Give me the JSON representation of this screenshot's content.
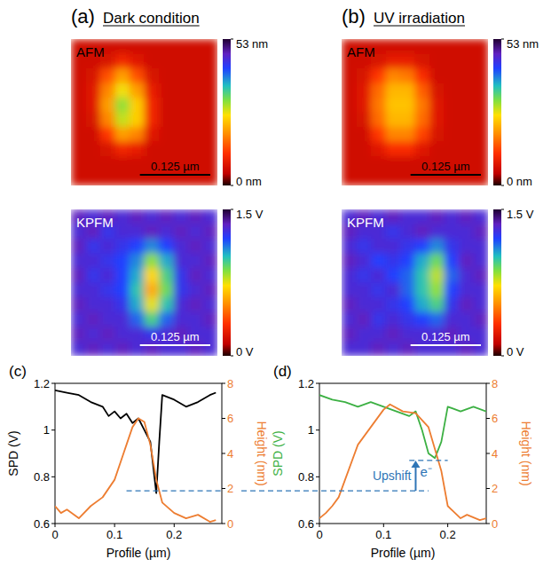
{
  "headers": [
    {
      "letter": "(a)",
      "title": "Dark condition"
    },
    {
      "letter": "(b)",
      "title": "UV irradiation"
    }
  ],
  "annotation": {
    "label": "Upshift",
    "carrier": "e⁻",
    "from": 0.74,
    "to": 0.87,
    "start_x": 0.12,
    "end_x": 0.17,
    "x": 0.15,
    "upper_span": [
      0.14,
      0.2
    ]
  },
  "chart_data": [
    {
      "type": "heatmap",
      "title": "AFM",
      "tick_labels": false,
      "zlim": [
        0,
        53
      ],
      "zticks": [
        {
          "value": 0,
          "label": "0 nm"
        },
        {
          "value": 53,
          "label": "53 nm"
        }
      ],
      "scale_bar": {
        "value": 0.125,
        "label": "0.125 µm"
      },
      "width_um": 0.26,
      "cells": [
        [
          6,
          6,
          6,
          6,
          6,
          6,
          6,
          6,
          6,
          6
        ],
        [
          6,
          6,
          7,
          10,
          8,
          6,
          6,
          6,
          6,
          6
        ],
        [
          6,
          7,
          14,
          20,
          14,
          7,
          6,
          6,
          6,
          6
        ],
        [
          6,
          8,
          18,
          26,
          20,
          9,
          6,
          6,
          6,
          6
        ],
        [
          6,
          8,
          20,
          30,
          24,
          10,
          6,
          6,
          6,
          6
        ],
        [
          6,
          7,
          18,
          28,
          24,
          10,
          6,
          6,
          6,
          6
        ],
        [
          6,
          6,
          12,
          20,
          18,
          8,
          6,
          6,
          6,
          6
        ],
        [
          6,
          6,
          7,
          10,
          9,
          6,
          6,
          6,
          6,
          6
        ],
        [
          6,
          6,
          6,
          6,
          6,
          6,
          6,
          6,
          6,
          6
        ],
        [
          6,
          6,
          6,
          6,
          6,
          6,
          6,
          6,
          6,
          6
        ]
      ]
    },
    {
      "type": "heatmap",
      "title": "KPFM",
      "tick_labels": false,
      "zlim": [
        0,
        1.5
      ],
      "zticks": [
        {
          "value": 0,
          "label": "0 V"
        },
        {
          "value": 1.5,
          "label": "1.5 V"
        }
      ],
      "scale_bar": {
        "value": 0.125,
        "label": "0.125 µm"
      },
      "width_um": 0.26,
      "cells": [
        [
          1.35,
          1.3,
          1.35,
          1.3,
          1.35,
          1.3,
          1.35,
          1.3,
          1.35,
          1.3
        ],
        [
          1.3,
          1.35,
          1.25,
          1.3,
          1.3,
          1.35,
          1.3,
          1.35,
          1.3,
          1.35
        ],
        [
          1.35,
          1.25,
          1.3,
          1.25,
          1.2,
          1.1,
          1.2,
          1.3,
          1.35,
          1.3
        ],
        [
          1.3,
          1.3,
          1.25,
          1.2,
          1.1,
          0.85,
          1.05,
          1.3,
          1.3,
          1.35
        ],
        [
          1.35,
          1.25,
          1.3,
          1.2,
          1.05,
          0.7,
          0.95,
          1.25,
          1.35,
          1.3
        ],
        [
          1.3,
          1.3,
          1.25,
          1.2,
          1.0,
          0.6,
          0.9,
          1.25,
          1.3,
          1.35
        ],
        [
          1.35,
          1.3,
          1.3,
          1.25,
          1.05,
          0.75,
          1.0,
          1.3,
          1.35,
          1.3
        ],
        [
          1.3,
          1.35,
          1.3,
          1.3,
          1.15,
          0.95,
          1.15,
          1.3,
          1.3,
          1.35
        ],
        [
          1.35,
          1.3,
          1.35,
          1.3,
          1.3,
          1.25,
          1.3,
          1.35,
          1.3,
          1.3
        ],
        [
          1.3,
          1.35,
          1.3,
          1.35,
          1.3,
          1.35,
          1.3,
          1.3,
          1.35,
          1.3
        ]
      ]
    },
    {
      "type": "heatmap",
      "title": "AFM",
      "tick_labels": false,
      "zlim": [
        0,
        53
      ],
      "zticks": [
        {
          "value": 0,
          "label": "0 nm"
        },
        {
          "value": 53,
          "label": "53 nm"
        }
      ],
      "scale_bar": {
        "value": 0.125,
        "label": "0.125 µm"
      },
      "width_um": 0.26,
      "cells": [
        [
          6,
          6,
          6,
          6,
          6,
          6,
          6,
          6,
          6,
          6
        ],
        [
          6,
          6,
          7,
          9,
          9,
          7,
          6,
          6,
          6,
          6
        ],
        [
          6,
          7,
          12,
          18,
          17,
          11,
          6,
          6,
          6,
          6
        ],
        [
          6,
          8,
          16,
          22,
          22,
          15,
          7,
          6,
          6,
          6
        ],
        [
          6,
          8,
          17,
          23,
          23,
          17,
          8,
          6,
          6,
          6
        ],
        [
          6,
          7,
          16,
          22,
          22,
          16,
          8,
          6,
          6,
          6
        ],
        [
          6,
          6,
          12,
          18,
          18,
          13,
          7,
          6,
          6,
          6
        ],
        [
          6,
          6,
          8,
          11,
          11,
          8,
          6,
          6,
          6,
          6
        ],
        [
          6,
          6,
          6,
          6,
          6,
          6,
          6,
          6,
          6,
          6
        ],
        [
          6,
          6,
          6,
          6,
          6,
          6,
          6,
          6,
          6,
          6
        ]
      ]
    },
    {
      "type": "heatmap",
      "title": "KPFM",
      "tick_labels": false,
      "zlim": [
        0,
        1.5
      ],
      "zticks": [
        {
          "value": 0,
          "label": "0 V"
        },
        {
          "value": 1.5,
          "label": "1.5 V"
        }
      ],
      "scale_bar": {
        "value": 0.125,
        "label": "0.125 µm"
      },
      "width_um": 0.26,
      "cells": [
        [
          1.3,
          1.35,
          1.3,
          1.35,
          1.3,
          1.3,
          1.35,
          1.3,
          1.35,
          1.3
        ],
        [
          1.35,
          1.3,
          1.3,
          1.25,
          1.3,
          1.35,
          1.3,
          1.3,
          1.3,
          1.35
        ],
        [
          1.3,
          1.25,
          1.3,
          1.3,
          1.25,
          1.2,
          1.1,
          1.25,
          1.3,
          1.3
        ],
        [
          1.35,
          1.3,
          1.2,
          1.25,
          1.2,
          1.05,
          0.9,
          1.2,
          1.35,
          1.3
        ],
        [
          1.3,
          1.25,
          1.3,
          1.2,
          1.15,
          1.0,
          0.8,
          1.15,
          1.3,
          1.35
        ],
        [
          1.3,
          1.3,
          1.25,
          1.3,
          1.15,
          1.0,
          0.85,
          1.2,
          1.3,
          1.3
        ],
        [
          1.35,
          1.3,
          1.3,
          1.25,
          1.2,
          1.05,
          0.95,
          1.25,
          1.35,
          1.3
        ],
        [
          1.3,
          1.35,
          1.25,
          1.3,
          1.25,
          1.2,
          1.15,
          1.3,
          1.3,
          1.35
        ],
        [
          1.35,
          1.3,
          1.3,
          1.35,
          1.3,
          1.3,
          1.3,
          1.35,
          1.3,
          1.3
        ],
        [
          1.3,
          1.3,
          1.35,
          1.3,
          1.35,
          1.3,
          1.3,
          1.3,
          1.35,
          1.3
        ]
      ]
    },
    {
      "type": "line",
      "panel": "(c)",
      "grid": false,
      "x_label": "Profile (µm)",
      "y_label": "SPD (V)",
      "y2_label": "Height (nm)",
      "xlim": [
        0,
        0.28
      ],
      "xticks": [
        0,
        0.1,
        0.2
      ],
      "ylim": [
        0.6,
        1.2
      ],
      "yticks": [
        0.6,
        0.8,
        1,
        1.2
      ],
      "y2lim": [
        0,
        8
      ],
      "y2ticks": [
        0,
        2,
        4,
        6,
        8
      ],
      "series": [
        {
          "color": "#000000",
          "x": [
            0,
            0.02,
            0.04,
            0.06,
            0.08,
            0.09,
            0.1,
            0.11,
            0.12,
            0.13,
            0.14,
            0.15,
            0.16,
            0.17,
            0.175,
            0.18,
            0.2,
            0.22,
            0.24,
            0.26,
            0.27
          ],
          "values": [
            1.17,
            1.16,
            1.15,
            1.12,
            1.1,
            1.06,
            1.08,
            1.05,
            1.07,
            1.03,
            1.05,
            1.0,
            0.95,
            0.73,
            0.95,
            1.15,
            1.13,
            1.1,
            1.12,
            1.15,
            1.16
          ]
        },
        {
          "color": "#ed7d31",
          "axis": "y2",
          "x": [
            0,
            0.01,
            0.02,
            0.04,
            0.06,
            0.08,
            0.1,
            0.12,
            0.13,
            0.14,
            0.15,
            0.16,
            0.17,
            0.18,
            0.2,
            0.22,
            0.24,
            0.26,
            0.27
          ],
          "values": [
            1,
            0.6,
            0.8,
            0.3,
            1.0,
            1.5,
            2.5,
            4.5,
            5.5,
            6,
            5.8,
            4.5,
            2.5,
            1.2,
            0.6,
            0.3,
            0.5,
            0.1,
            0.2
          ]
        }
      ]
    },
    {
      "type": "line",
      "panel": "(d)",
      "grid": false,
      "x_label": "Profile (µm)",
      "y_label": "SPD (V)",
      "y2_label": "Height (nm)",
      "xlim": [
        0,
        0.26
      ],
      "xticks": [
        0,
        0.1,
        0.2
      ],
      "ylim": [
        0.6,
        1.2
      ],
      "yticks": [
        0.6,
        0.8,
        1,
        1.2
      ],
      "y2lim": [
        0,
        8
      ],
      "y2ticks": [
        0,
        2,
        4,
        6,
        8
      ],
      "series": [
        {
          "color": "#3cb043",
          "x": [
            0,
            0.02,
            0.04,
            0.06,
            0.08,
            0.1,
            0.12,
            0.14,
            0.15,
            0.16,
            0.17,
            0.18,
            0.19,
            0.2,
            0.22,
            0.24,
            0.26
          ],
          "values": [
            1.15,
            1.13,
            1.12,
            1.1,
            1.12,
            1.1,
            1.08,
            1.06,
            1.08,
            1.0,
            0.9,
            0.88,
            0.95,
            1.1,
            1.08,
            1.1,
            1.08
          ]
        },
        {
          "color": "#ed7d31",
          "axis": "y2",
          "x": [
            0,
            0.01,
            0.02,
            0.03,
            0.04,
            0.06,
            0.08,
            0.1,
            0.11,
            0.13,
            0.15,
            0.17,
            0.19,
            0.2,
            0.22,
            0.23,
            0.25,
            0.26
          ],
          "values": [
            0.3,
            0.6,
            1.0,
            1.5,
            2.5,
            4.5,
            5.5,
            6.5,
            6.8,
            6.4,
            6.3,
            5.5,
            3.0,
            1,
            0.3,
            0.5,
            0.2,
            0.3
          ]
        }
      ]
    }
  ]
}
